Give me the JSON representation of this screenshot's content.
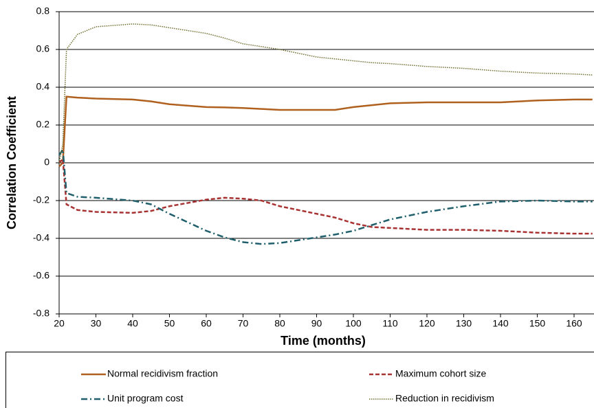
{
  "chart_data": {
    "type": "line",
    "xlabel": "Time (months)",
    "ylabel": "Correlation Coefficient",
    "x": [
      20,
      21,
      22,
      25,
      30,
      40,
      45,
      50,
      60,
      65,
      70,
      75,
      80,
      90,
      95,
      100,
      105,
      110,
      120,
      130,
      140,
      150,
      160,
      165
    ],
    "series": [
      {
        "name": "Normal recidivism fraction",
        "color": "#b0601e",
        "dash": "solid",
        "values": [
          -0.02,
          0.0,
          0.35,
          0.345,
          0.34,
          0.335,
          0.325,
          0.31,
          0.295,
          0.293,
          0.29,
          0.285,
          0.28,
          0.28,
          0.28,
          0.295,
          0.305,
          0.315,
          0.32,
          0.32,
          0.32,
          0.33,
          0.335,
          0.335
        ]
      },
      {
        "name": "Maximum cohort size",
        "color": "#a83232",
        "dash": "dashed",
        "values": [
          0.0,
          0.02,
          -0.22,
          -0.25,
          -0.26,
          -0.265,
          -0.255,
          -0.23,
          -0.195,
          -0.185,
          -0.19,
          -0.2,
          -0.23,
          -0.27,
          -0.29,
          -0.32,
          -0.34,
          -0.345,
          -0.355,
          -0.355,
          -0.36,
          -0.37,
          -0.375,
          -0.375
        ]
      },
      {
        "name": "Unit program cost",
        "color": "#1f5f6b",
        "dash": "dashdot",
        "values": [
          0.04,
          0.07,
          -0.16,
          -0.18,
          -0.185,
          -0.2,
          -0.22,
          -0.27,
          -0.36,
          -0.395,
          -0.42,
          -0.43,
          -0.425,
          -0.395,
          -0.38,
          -0.36,
          -0.33,
          -0.3,
          -0.26,
          -0.23,
          -0.205,
          -0.2,
          -0.205,
          -0.205
        ]
      },
      {
        "name": "Reduction in recidivism",
        "color": "#6b6b2a",
        "dash": "dotted",
        "values": [
          0.0,
          0.1,
          0.6,
          0.68,
          0.72,
          0.735,
          0.73,
          0.715,
          0.685,
          0.66,
          0.63,
          0.615,
          0.6,
          0.56,
          0.55,
          0.54,
          0.53,
          0.525,
          0.51,
          0.5,
          0.485,
          0.475,
          0.47,
          0.465
        ]
      }
    ],
    "xlim": [
      20,
      165
    ],
    "ylim": [
      -0.8,
      0.8
    ],
    "xticks": [
      20,
      30,
      40,
      50,
      60,
      70,
      80,
      90,
      100,
      110,
      120,
      130,
      140,
      150,
      160
    ],
    "yticks": [
      -0.8,
      -0.6,
      -0.4,
      -0.2,
      0,
      0.2,
      0.4,
      0.6,
      0.8
    ],
    "grid": true,
    "legend": "bottom"
  }
}
